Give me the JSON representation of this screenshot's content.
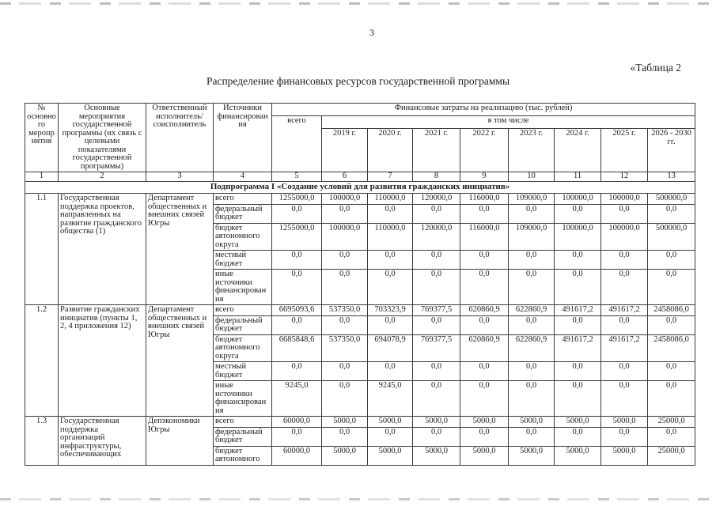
{
  "page": {
    "number": "3",
    "table_label": "«Таблица 2",
    "title": "Распределение финансовых ресурсов государственной программы"
  },
  "table": {
    "header": {
      "col_activity_num": "№ основного мероприятия",
      "col_activity": "Основные мероприятия государственной программы (их связь с целевыми показателями государственной программы)",
      "col_executor": "Ответственный исполнитель/соисполнитель",
      "col_sources": "Источники финансирования",
      "col_costs": "Финансовые затраты на реализацию (тыс. рублей)",
      "col_total": "всего",
      "col_including": "в том числе",
      "years": [
        "2019 г.",
        "2020 г.",
        "2021 г.",
        "2022 г.",
        "2023 г.",
        "2024 г.",
        "2025 г.",
        "2026 - 2030 гг."
      ]
    },
    "col_numbers": [
      "1",
      "2",
      "3",
      "4",
      "5",
      "6",
      "7",
      "8",
      "9",
      "10",
      "11",
      "12",
      "13"
    ],
    "subprogram": "Подпрограмма I «Создание условий для развития гражданских инициатив»",
    "rows": [
      {
        "num": "1.1",
        "activity": "Государственная поддержка проектов, направленных на развитие гражданского общества (1)",
        "executor": "Департамент общественных и внешних связей Югры",
        "sources": [
          {
            "label": "всего",
            "values": [
              "1255000,0",
              "100000,0",
              "110000,0",
              "120000,0",
              "116000,0",
              "109000,0",
              "100000,0",
              "100000,0",
              "500000,0"
            ]
          },
          {
            "label": "федеральный бюджет",
            "values": [
              "0,0",
              "0,0",
              "0,0",
              "0,0",
              "0,0",
              "0,0",
              "0,0",
              "0,0",
              "0,0"
            ]
          },
          {
            "label": "бюджет автономного округа",
            "values": [
              "1255000,0",
              "100000,0",
              "110000,0",
              "120000,0",
              "116000,0",
              "109000,0",
              "100000,0",
              "100000,0",
              "500000,0"
            ]
          },
          {
            "label": "местный бюджет",
            "values": [
              "0,0",
              "0,0",
              "0,0",
              "0,0",
              "0,0",
              "0,0",
              "0,0",
              "0,0",
              "0,0"
            ]
          },
          {
            "label": "иные источники финансирования",
            "values": [
              "0,0",
              "0,0",
              "0,0",
              "0,0",
              "0,0",
              "0,0",
              "0,0",
              "0,0",
              "0,0"
            ]
          }
        ]
      },
      {
        "num": "1.2",
        "activity": "Развитие гражданских инициатив (пункты 1, 2, 4 приложения 12)",
        "executor": "Департамент общественных и внешних связей Югры",
        "sources": [
          {
            "label": "всего",
            "values": [
              "6695093,6",
              "537350,0",
              "703323,9",
              "769377,5",
              "620860,9",
              "622860,9",
              "491617,2",
              "491617,2",
              "2458086,0"
            ]
          },
          {
            "label": "федеральный бюджет",
            "values": [
              "0,0",
              "0,0",
              "0,0",
              "0,0",
              "0,0",
              "0,0",
              "0,0",
              "0,0",
              "0,0"
            ]
          },
          {
            "label": "бюджет автономного округа",
            "values": [
              "6685848,6",
              "537350,0",
              "694078,9",
              "769377,5",
              "620860,9",
              "622860,9",
              "491617,2",
              "491617,2",
              "2458086,0"
            ]
          },
          {
            "label": "местный бюджет",
            "values": [
              "0,0",
              "0,0",
              "0,0",
              "0,0",
              "0,0",
              "0,0",
              "0,0",
              "0,0",
              "0,0"
            ]
          },
          {
            "label": "иные источники финансирования",
            "values": [
              "9245,0",
              "0,0",
              "9245,0",
              "0,0",
              "0,0",
              "0,0",
              "0,0",
              "0,0",
              "0,0"
            ]
          }
        ]
      },
      {
        "num": "1.3",
        "activity": "Государственная поддержка организаций инфраструктуры, обеспечивающих",
        "executor": "Депэкономики Югры",
        "sources": [
          {
            "label": "всего",
            "values": [
              "60000,0",
              "5000,0",
              "5000,0",
              "5000,0",
              "5000,0",
              "5000,0",
              "5000,0",
              "5000,0",
              "25000,0"
            ]
          },
          {
            "label": "федеральный бюджет",
            "values": [
              "0,0",
              "0,0",
              "0,0",
              "0,0",
              "0,0",
              "0,0",
              "0,0",
              "0,0",
              "0,0"
            ]
          },
          {
            "label": "бюджет автономного",
            "values": [
              "60000,0",
              "5000,0",
              "5000,0",
              "5000,0",
              "5000,0",
              "5000,0",
              "5000,0",
              "5000,0",
              "25000,0"
            ]
          }
        ]
      }
    ]
  }
}
